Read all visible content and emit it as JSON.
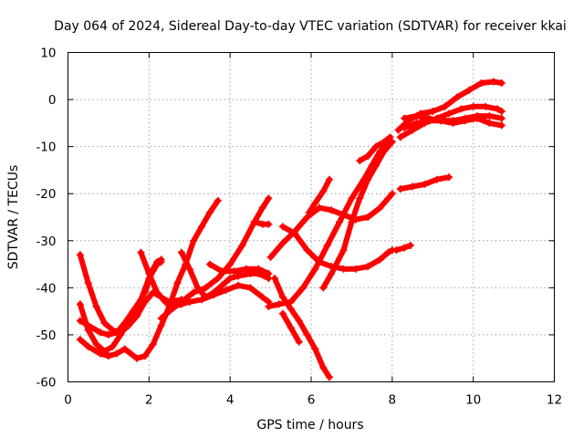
{
  "chart_data": {
    "type": "scatter",
    "title": "Day 064 of 2024, Sidereal Day-to-day VTEC variation (SDTVAR) for receiver kkai",
    "xlabel": "GPS time / hours",
    "ylabel": "SDTVAR / TECUs",
    "xlim": [
      0,
      12
    ],
    "ylim": [
      -60,
      10
    ],
    "xticks": [
      "0",
      "2",
      "4",
      "6",
      "8",
      "10",
      "12"
    ],
    "yticks": [
      "10",
      "0",
      "-10",
      "-20",
      "-30",
      "-40",
      "-50",
      "-60"
    ],
    "grid": true,
    "marker": "+",
    "color": "#ff0000",
    "series": [
      {
        "points": [
          [
            0.3,
            -33
          ],
          [
            0.5,
            -39
          ],
          [
            0.7,
            -44
          ],
          [
            0.9,
            -47.5
          ],
          [
            1.1,
            -49
          ],
          [
            1.3,
            -49.5
          ],
          [
            1.5,
            -48
          ],
          [
            1.7,
            -46
          ],
          [
            1.9,
            -43
          ],
          [
            2.1,
            -41
          ],
          [
            2.3,
            -42
          ],
          [
            2.5,
            -43
          ],
          [
            2.8,
            -42.5
          ]
        ]
      },
      {
        "points": [
          [
            0.3,
            -43.5
          ],
          [
            0.5,
            -49
          ],
          [
            0.7,
            -52
          ],
          [
            0.9,
            -53.5
          ],
          [
            1.1,
            -52.5
          ],
          [
            1.3,
            -50
          ],
          [
            1.5,
            -47
          ],
          [
            1.7,
            -44
          ],
          [
            1.9,
            -41
          ],
          [
            2.1,
            -36
          ],
          [
            2.2,
            -34.5
          ],
          [
            2.3,
            -34
          ]
        ]
      },
      {
        "points": [
          [
            0.3,
            -51
          ],
          [
            0.5,
            -52.5
          ],
          [
            0.8,
            -54
          ],
          [
            1.0,
            -54.5
          ],
          [
            1.2,
            -54
          ],
          [
            1.4,
            -53
          ],
          [
            1.7,
            -55
          ],
          [
            1.9,
            -54.5
          ],
          [
            2.1,
            -52
          ],
          [
            2.3,
            -48
          ],
          [
            2.5,
            -44
          ],
          [
            2.7,
            -39
          ],
          [
            2.9,
            -35
          ],
          [
            3.1,
            -30
          ],
          [
            3.3,
            -27
          ],
          [
            3.5,
            -24
          ],
          [
            3.7,
            -21.5
          ]
        ]
      },
      {
        "points": [
          [
            0.3,
            -47
          ],
          [
            0.5,
            -48
          ],
          [
            0.8,
            -49.5
          ],
          [
            1.0,
            -50
          ],
          [
            1.2,
            -49.5
          ],
          [
            1.4,
            -47.5
          ],
          [
            1.6,
            -45
          ],
          [
            1.8,
            -42.5
          ],
          [
            2.0,
            -38
          ],
          [
            2.2,
            -35
          ],
          [
            2.3,
            -34.5
          ]
        ]
      },
      {
        "points": [
          [
            1.8,
            -32.5
          ],
          [
            2.0,
            -37
          ],
          [
            2.2,
            -41
          ],
          [
            2.4,
            -43
          ],
          [
            2.6,
            -44
          ],
          [
            2.8,
            -43.5
          ],
          [
            3.0,
            -43
          ],
          [
            3.3,
            -42.5
          ],
          [
            3.6,
            -41.5
          ],
          [
            3.9,
            -40.5
          ],
          [
            4.2,
            -39.5
          ],
          [
            4.5,
            -40
          ],
          [
            4.8,
            -42
          ],
          [
            4.95,
            -43
          ]
        ]
      },
      {
        "points": [
          [
            2.8,
            -32.5
          ],
          [
            3.0,
            -36
          ],
          [
            3.2,
            -40
          ],
          [
            3.4,
            -42
          ],
          [
            3.6,
            -41
          ],
          [
            3.8,
            -39.5
          ],
          [
            4.0,
            -38
          ],
          [
            4.2,
            -37.5
          ],
          [
            4.5,
            -37
          ],
          [
            4.7,
            -37
          ],
          [
            4.95,
            -38
          ]
        ]
      },
      {
        "points": [
          [
            2.3,
            -46.5
          ],
          [
            2.5,
            -45
          ],
          [
            2.8,
            -43
          ],
          [
            3.1,
            -41
          ],
          [
            3.4,
            -40
          ],
          [
            3.7,
            -38
          ],
          [
            4.0,
            -35
          ],
          [
            4.3,
            -31
          ],
          [
            4.6,
            -26
          ],
          [
            4.8,
            -23
          ],
          [
            4.95,
            -21
          ]
        ]
      },
      {
        "points": [
          [
            3.5,
            -35
          ],
          [
            3.8,
            -36.5
          ],
          [
            4.1,
            -36.5
          ],
          [
            4.4,
            -36
          ],
          [
            4.7,
            -36
          ],
          [
            4.95,
            -37
          ]
        ]
      },
      {
        "points": [
          [
            4.6,
            -26
          ],
          [
            4.8,
            -26.5
          ],
          [
            4.95,
            -26.5
          ]
        ]
      },
      {
        "points": [
          [
            5.0,
            -33.5
          ],
          [
            5.3,
            -30.5
          ],
          [
            5.6,
            -28
          ],
          [
            5.9,
            -25
          ],
          [
            6.2,
            -23
          ],
          [
            6.5,
            -23.5
          ],
          [
            6.8,
            -24.5
          ],
          [
            7.1,
            -25.5
          ],
          [
            7.4,
            -25
          ],
          [
            7.7,
            -23
          ],
          [
            7.9,
            -21
          ],
          [
            8.0,
            -20
          ]
        ]
      },
      {
        "points": [
          [
            5.3,
            -27
          ],
          [
            5.6,
            -28.5
          ],
          [
            5.9,
            -32
          ],
          [
            6.2,
            -34.5
          ],
          [
            6.5,
            -35.5
          ],
          [
            6.8,
            -36
          ],
          [
            7.1,
            -36
          ],
          [
            7.4,
            -35.5
          ],
          [
            7.7,
            -34
          ],
          [
            7.9,
            -32.5
          ],
          [
            8.0,
            -32
          ]
        ]
      },
      {
        "points": [
          [
            4.95,
            -44
          ],
          [
            5.2,
            -43.5
          ],
          [
            5.5,
            -43
          ],
          [
            5.8,
            -40
          ],
          [
            6.1,
            -36
          ],
          [
            6.4,
            -31
          ],
          [
            6.7,
            -26
          ],
          [
            7.0,
            -21
          ],
          [
            7.3,
            -17
          ],
          [
            7.5,
            -14
          ],
          [
            7.7,
            -11
          ],
          [
            7.9,
            -9.5
          ]
        ]
      },
      {
        "points": [
          [
            5.1,
            -38
          ],
          [
            5.3,
            -42
          ],
          [
            5.5,
            -44.5
          ],
          [
            5.7,
            -47
          ],
          [
            5.9,
            -50
          ],
          [
            6.1,
            -53
          ],
          [
            6.3,
            -57
          ],
          [
            6.45,
            -59
          ]
        ]
      },
      {
        "points": [
          [
            5.3,
            -45.5
          ],
          [
            5.5,
            -48.5
          ],
          [
            5.7,
            -51.5
          ]
        ]
      },
      {
        "points": [
          [
            5.95,
            -24
          ],
          [
            6.1,
            -22
          ],
          [
            6.3,
            -19.5
          ],
          [
            6.45,
            -17
          ]
        ]
      },
      {
        "points": [
          [
            7.2,
            -13
          ],
          [
            7.4,
            -12
          ],
          [
            7.6,
            -10
          ],
          [
            7.8,
            -9
          ],
          [
            7.95,
            -8
          ]
        ]
      },
      {
        "points": [
          [
            6.3,
            -40
          ],
          [
            6.5,
            -37
          ],
          [
            6.8,
            -32
          ],
          [
            7.0,
            -26
          ],
          [
            7.2,
            -21
          ],
          [
            7.4,
            -17
          ],
          [
            7.6,
            -14
          ],
          [
            7.8,
            -11
          ],
          [
            8.0,
            -9
          ]
        ]
      },
      {
        "points": [
          [
            8.1,
            -32
          ],
          [
            8.3,
            -31.5
          ],
          [
            8.45,
            -31
          ]
        ]
      },
      {
        "points": [
          [
            8.2,
            -19
          ],
          [
            8.5,
            -18.5
          ],
          [
            8.8,
            -18
          ],
          [
            9.1,
            -17
          ],
          [
            9.4,
            -16.5
          ]
        ]
      },
      {
        "points": [
          [
            8.15,
            -6.5
          ],
          [
            8.4,
            -4.5
          ],
          [
            8.7,
            -3
          ],
          [
            9.0,
            -2.5
          ],
          [
            9.3,
            -1.5
          ],
          [
            9.6,
            0.5
          ],
          [
            9.9,
            2
          ],
          [
            10.2,
            3.5
          ],
          [
            10.5,
            3.8
          ],
          [
            10.7,
            3.5
          ]
        ]
      },
      {
        "points": [
          [
            8.2,
            -8
          ],
          [
            8.5,
            -6.5
          ],
          [
            8.8,
            -5
          ],
          [
            9.1,
            -4
          ],
          [
            9.4,
            -3
          ],
          [
            9.7,
            -2
          ],
          [
            10.0,
            -1.5
          ],
          [
            10.3,
            -1.5
          ],
          [
            10.6,
            -2
          ],
          [
            10.7,
            -2.5
          ]
        ]
      },
      {
        "points": [
          [
            8.3,
            -6
          ],
          [
            8.6,
            -5
          ],
          [
            8.9,
            -4.5
          ],
          [
            9.2,
            -4.5
          ],
          [
            9.5,
            -5
          ],
          [
            9.8,
            -4.5
          ],
          [
            10.1,
            -4
          ],
          [
            10.4,
            -5
          ],
          [
            10.7,
            -5.5
          ]
        ]
      },
      {
        "points": [
          [
            8.3,
            -4
          ],
          [
            8.6,
            -3.5
          ],
          [
            8.9,
            -4
          ],
          [
            9.2,
            -4.5
          ],
          [
            9.5,
            -4.5
          ],
          [
            9.8,
            -4
          ],
          [
            10.1,
            -3.5
          ],
          [
            10.4,
            -3.5
          ],
          [
            10.7,
            -4
          ]
        ]
      }
    ]
  }
}
